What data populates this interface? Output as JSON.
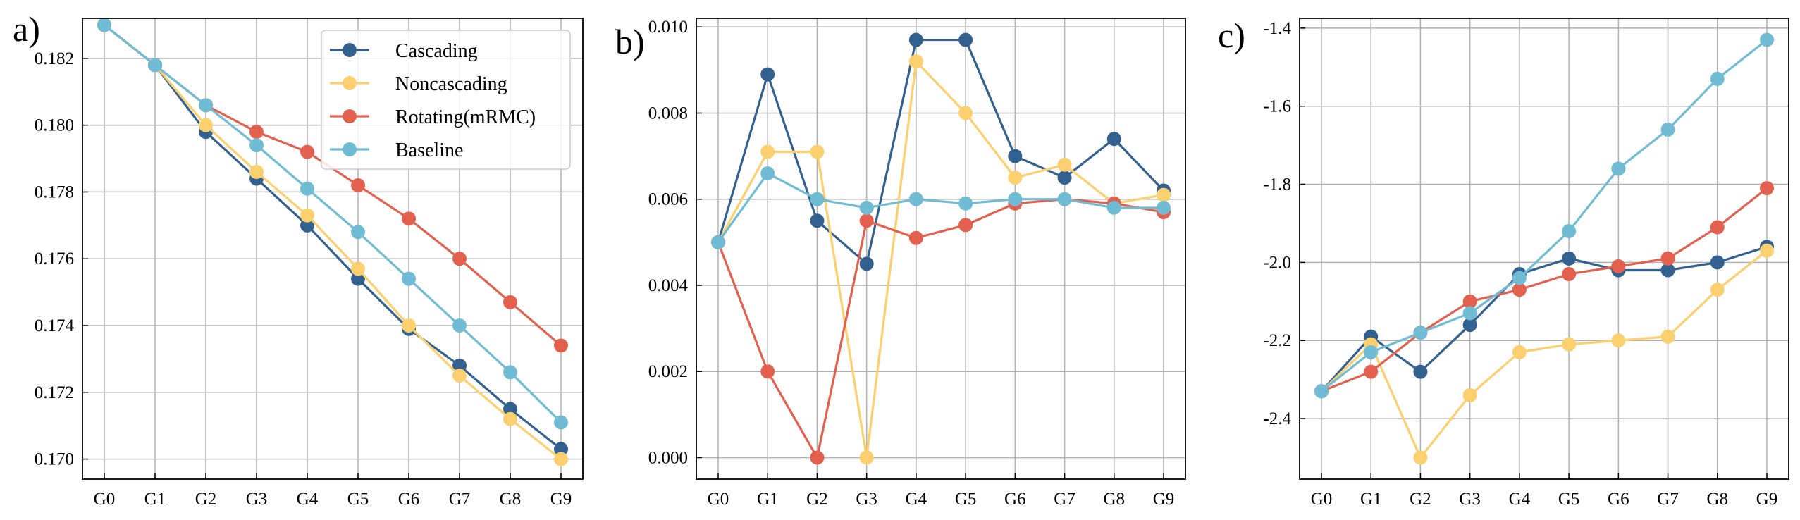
{
  "colors": {
    "Cascading": "#33618f",
    "Noncascading": "#fcd06e",
    "Rotating(mRMC)": "#e3604e",
    "Baseline": "#70bcd4",
    "grid": "#b0b0b0",
    "legend_border": "#cccccc"
  },
  "legend": {
    "entries": [
      "Cascading",
      "Noncascading",
      "Rotating(mRMC)",
      "Baseline"
    ]
  },
  "chart_data": [
    {
      "type": "line",
      "panel_label": "a)",
      "title": "",
      "xlabel": "",
      "ylabel": "",
      "categories": [
        "G0",
        "G1",
        "G2",
        "G3",
        "G4",
        "G5",
        "G6",
        "G7",
        "G8",
        "G9"
      ],
      "ylim": [
        0.1694,
        0.1832
      ],
      "yticks": [
        0.17,
        0.172,
        0.174,
        0.176,
        0.178,
        0.18,
        0.182
      ],
      "ytick_labels": [
        "0.170",
        "0.172",
        "0.174",
        "0.176",
        "0.178",
        "0.180",
        "0.182"
      ],
      "grid": true,
      "legend_position": "top-right",
      "series": [
        {
          "name": "Cascading",
          "values": [
            0.183,
            0.1818,
            0.1798,
            0.1784,
            0.177,
            0.1754,
            0.1739,
            0.1728,
            0.1715,
            0.1703
          ]
        },
        {
          "name": "Noncascading",
          "values": [
            0.183,
            0.1818,
            0.18,
            0.1786,
            0.1773,
            0.1757,
            0.174,
            0.1725,
            0.1712,
            0.17
          ]
        },
        {
          "name": "Rotating(mRMC)",
          "values": [
            0.183,
            0.1818,
            0.1806,
            0.1798,
            0.1792,
            0.1782,
            0.1772,
            0.176,
            0.1747,
            0.1734
          ]
        },
        {
          "name": "Baseline",
          "values": [
            0.183,
            0.1818,
            0.1806,
            0.1794,
            0.1781,
            0.1768,
            0.1754,
            0.174,
            0.1726,
            0.1711
          ]
        }
      ]
    },
    {
      "type": "line",
      "panel_label": "b)",
      "title": "",
      "xlabel": "",
      "ylabel": "",
      "categories": [
        "G0",
        "G1",
        "G2",
        "G3",
        "G4",
        "G5",
        "G6",
        "G7",
        "G8",
        "G9"
      ],
      "ylim": [
        -0.0005,
        0.0102
      ],
      "yticks": [
        0.0,
        0.002,
        0.004,
        0.006,
        0.008,
        0.01
      ],
      "ytick_labels": [
        "0.000",
        "0.002",
        "0.004",
        "0.006",
        "0.008",
        "0.010"
      ],
      "grid": true,
      "series": [
        {
          "name": "Cascading",
          "values": [
            0.005,
            0.0089,
            0.0055,
            0.0045,
            0.0097,
            0.0097,
            0.007,
            0.0065,
            0.0074,
            0.0062
          ]
        },
        {
          "name": "Noncascading",
          "values": [
            0.005,
            0.0071,
            0.0071,
            0.0,
            0.0092,
            0.008,
            0.0065,
            0.0068,
            0.0059,
            0.0061
          ]
        },
        {
          "name": "Rotating(mRMC)",
          "values": [
            0.005,
            0.002,
            0.0,
            0.0055,
            0.0051,
            0.0054,
            0.0059,
            0.006,
            0.0059,
            0.0057
          ]
        },
        {
          "name": "Baseline",
          "values": [
            0.005,
            0.0066,
            0.006,
            0.0058,
            0.006,
            0.0059,
            0.006,
            0.006,
            0.0058,
            0.0058
          ]
        }
      ]
    },
    {
      "type": "line",
      "panel_label": "c)",
      "title": "",
      "xlabel": "",
      "ylabel": "",
      "categories": [
        "G0",
        "G1",
        "G2",
        "G3",
        "G4",
        "G5",
        "G6",
        "G7",
        "G8",
        "G9"
      ],
      "ylim": [
        -2.555,
        -1.375
      ],
      "yticks": [
        -2.4,
        -2.2,
        -2.0,
        -1.8,
        -1.6,
        -1.4
      ],
      "ytick_labels": [
        "-2.4",
        "-2.2",
        "-2.0",
        "-1.8",
        "-1.6",
        "-1.4"
      ],
      "grid": true,
      "series": [
        {
          "name": "Cascading",
          "values": [
            -2.33,
            -2.19,
            -2.28,
            -2.16,
            -2.03,
            -1.99,
            -2.02,
            -2.02,
            -2.0,
            -1.96
          ]
        },
        {
          "name": "Noncascading",
          "values": [
            -2.33,
            -2.21,
            -2.5,
            -2.34,
            -2.23,
            -2.21,
            -2.2,
            -2.19,
            -2.07,
            -1.97
          ]
        },
        {
          "name": "Rotating(mRMC)",
          "values": [
            -2.33,
            -2.28,
            -2.18,
            -2.1,
            -2.07,
            -2.03,
            -2.01,
            -1.99,
            -1.91,
            -1.81
          ]
        },
        {
          "name": "Baseline",
          "values": [
            -2.33,
            -2.23,
            -2.18,
            -2.13,
            -2.04,
            -1.92,
            -1.76,
            -1.66,
            -1.53,
            -1.43
          ]
        }
      ]
    }
  ]
}
